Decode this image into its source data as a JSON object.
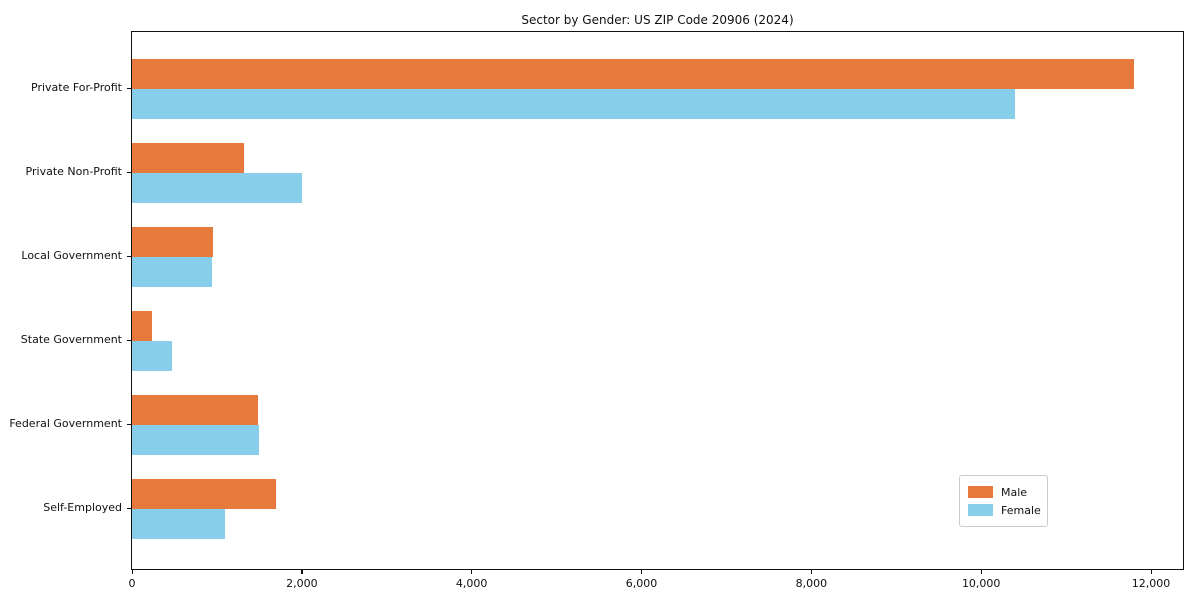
{
  "title": "Sector by Gender: US ZIP Code 20906 (2024)",
  "chart_data": {
    "type": "bar",
    "orientation": "horizontal",
    "title": "Sector by Gender: US ZIP Code 20906 (2024)",
    "xlabel": "",
    "ylabel": "",
    "categories": [
      "Private For-Profit",
      "Private Non-Profit",
      "Local Government",
      "State Government",
      "Federal Government",
      "Self-Employed"
    ],
    "series": [
      {
        "name": "Male",
        "color": "#E8793D",
        "values": [
          11800,
          1320,
          950,
          240,
          1480,
          1700
        ]
      },
      {
        "name": "Female",
        "color": "#87CEEB",
        "values": [
          10400,
          2000,
          940,
          470,
          1490,
          1100
        ]
      }
    ],
    "xlim": [
      0,
      12400
    ],
    "x_ticks": [
      0,
      2000,
      4000,
      6000,
      8000,
      10000,
      12000
    ],
    "x_tick_labels": [
      "0",
      "2,000",
      "4,000",
      "6,000",
      "8,000",
      "10,000",
      "12,000"
    ],
    "grid": false,
    "legend_position": "lower right"
  },
  "legend": {
    "items": [
      {
        "label": "Male",
        "color": "#E8793D"
      },
      {
        "label": "Female",
        "color": "#87CEEB"
      }
    ]
  }
}
